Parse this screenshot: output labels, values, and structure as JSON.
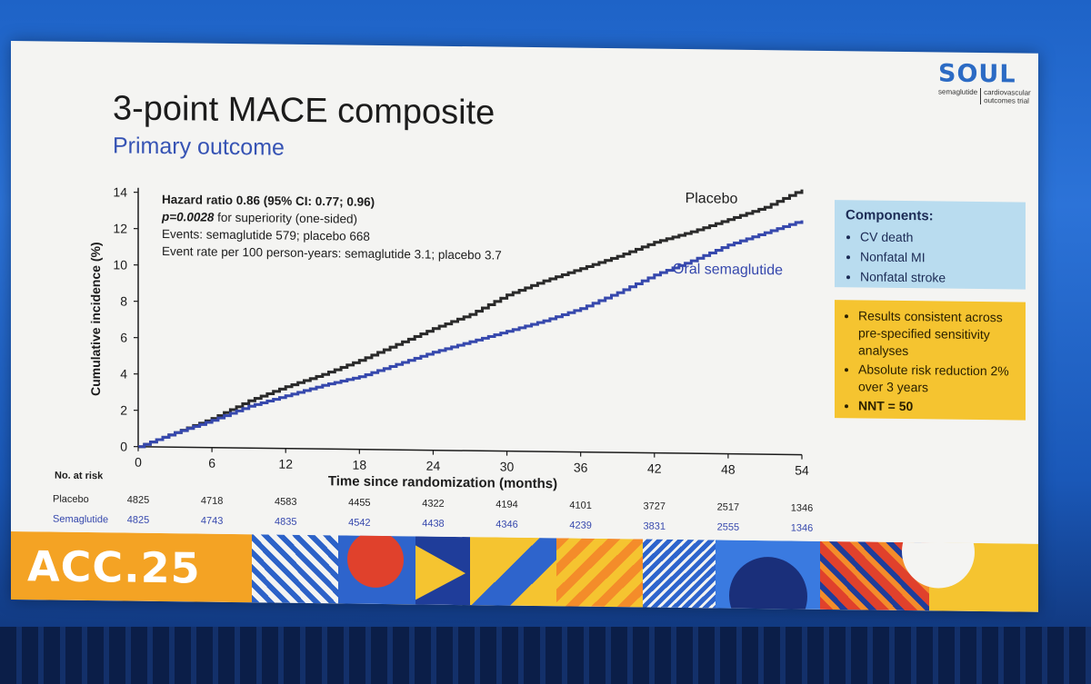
{
  "slide": {
    "title": "3-point MACE composite",
    "subtitle": "Primary outcome",
    "logo": {
      "word": "SOUL",
      "left": "semaglutide",
      "right": "cardiovascular outcomes trial"
    }
  },
  "chart_data": {
    "type": "line",
    "title": "",
    "xlabel": "Time since randomization (months)",
    "ylabel": "Cumulative incidence (%)",
    "xlim": [
      0,
      54
    ],
    "ylim": [
      0,
      14
    ],
    "xticks": [
      0,
      6,
      12,
      18,
      24,
      30,
      36,
      42,
      48,
      54
    ],
    "yticks": [
      0,
      2,
      4,
      6,
      8,
      10,
      12,
      14
    ],
    "grid": false,
    "series": [
      {
        "name": "Placebo",
        "color": "#2a2a2a",
        "x": [
          0,
          3,
          6,
          9,
          12,
          15,
          18,
          21,
          24,
          27,
          30,
          33,
          36,
          39,
          42,
          45,
          48,
          51,
          54
        ],
        "y": [
          0,
          0.8,
          1.6,
          2.6,
          3.4,
          4.1,
          4.9,
          5.8,
          6.7,
          7.5,
          8.6,
          9.4,
          10.1,
          10.8,
          11.6,
          12.2,
          12.9,
          13.6,
          14.6
        ]
      },
      {
        "name": "Oral semaglutide",
        "color": "#3648ad",
        "x": [
          0,
          3,
          6,
          9,
          12,
          15,
          18,
          21,
          24,
          27,
          30,
          33,
          36,
          39,
          42,
          45,
          48,
          51,
          54
        ],
        "y": [
          0,
          0.8,
          1.5,
          2.3,
          2.9,
          3.5,
          4.0,
          4.7,
          5.4,
          6.0,
          6.6,
          7.2,
          7.9,
          8.8,
          9.8,
          10.6,
          11.5,
          12.2,
          12.9
        ]
      }
    ],
    "annotations": {
      "hr_label": "Hazard ratio 0.86 (95% CI: 0.77; 0.96)",
      "p_label": "p=0.0028",
      "p_rest": " for superiority (one-sided)",
      "events": "Events: semaglutide 579; placebo 668",
      "event_rate": "Event rate per 100 person-years: semaglutide 3.1; placebo 3.7"
    },
    "at_risk": {
      "header": "No. at risk",
      "rows": [
        {
          "label": "Placebo",
          "color": "#222222",
          "values": [
            "4825",
            "4718",
            "4583",
            "4455",
            "4322",
            "4194",
            "4101",
            "3727",
            "2517",
            "1346"
          ]
        },
        {
          "label": "Semaglutide",
          "color": "#3648ad",
          "values": [
            "4825",
            "4743",
            "4835",
            "4542",
            "4438",
            "4346",
            "4239",
            "3831",
            "2555",
            "1346"
          ]
        }
      ]
    }
  },
  "components": {
    "title": "Components:",
    "items": [
      "CV death",
      "Nonfatal MI",
      "Nonfatal stroke"
    ]
  },
  "results": {
    "items": [
      "Results consistent across pre-specified sensitivity analyses",
      "Absolute risk reduction 2% over 3 years",
      "NNT = 50"
    ]
  },
  "banner": {
    "text": "ACC.25"
  }
}
